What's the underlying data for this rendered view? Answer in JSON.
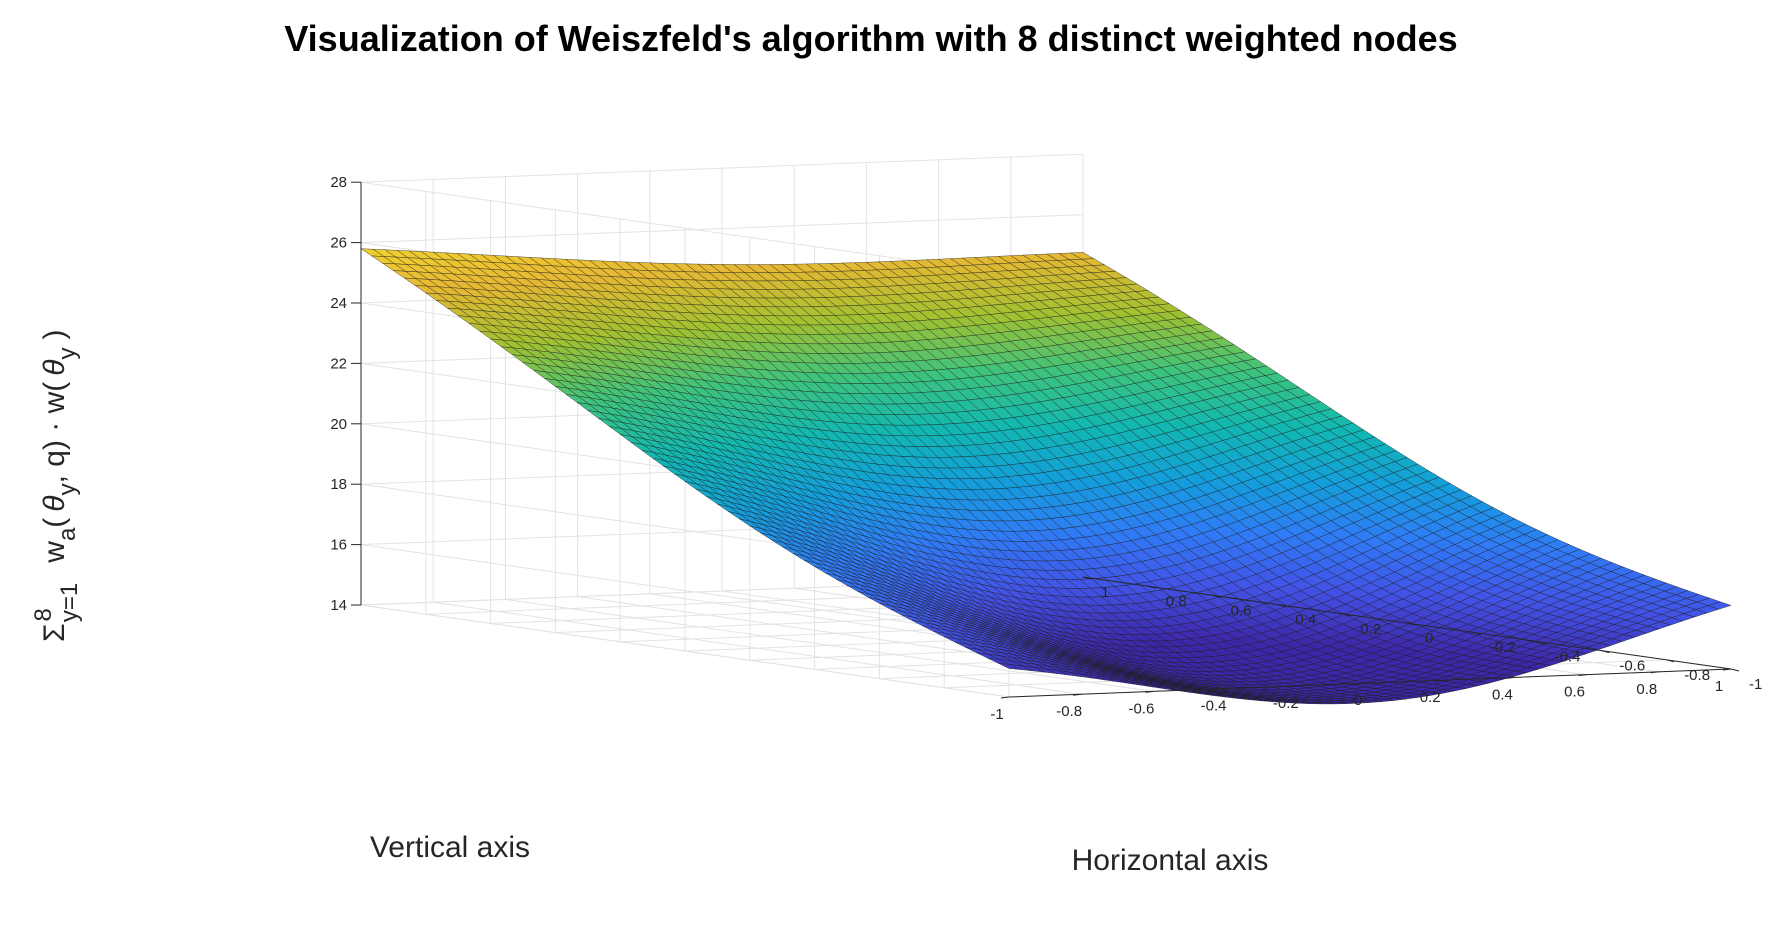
{
  "chart_data": {
    "type": "surface",
    "title": "Visualization of Weiszfeld's algorithm with 8 distinct weighted nodes",
    "xlabel": "Horizontal axis",
    "ylabel": "Vertical axis",
    "zlabel": {
      "sum_symbol": "Σ",
      "sum_lower": "y=1",
      "sum_upper": "8",
      "w_a": "w",
      "w_a_sub": "a",
      "open": "(",
      "theta": "θ",
      "theta_sub": "y",
      "mid": ", q) · w(",
      "close": ")"
    },
    "xlim": [
      -1,
      1
    ],
    "ylim": [
      -1,
      1
    ],
    "zlim": [
      14,
      28
    ],
    "xticks": [
      "-1",
      "-0.8",
      "-0.6",
      "-0.4",
      "-0.2",
      "0",
      "0.2",
      "0.4",
      "0.6",
      "0.8",
      "1"
    ],
    "yticks": [
      "-1",
      "-0.8",
      "-0.6",
      "-0.4",
      "-0.2",
      "0",
      "0.2",
      "0.4",
      "0.6",
      "0.8",
      "1"
    ],
    "zticks": [
      "14",
      "16",
      "18",
      "20",
      "22",
      "24",
      "26",
      "28"
    ],
    "grid": true,
    "colormap": "parula",
    "colormap_stops": [
      "#3e26a8",
      "#4253e6",
      "#2f7cf6",
      "#139fda",
      "#12b8b0",
      "#3ec37c",
      "#a1c130",
      "#e7b833",
      "#f6d92e"
    ],
    "corner_values": [
      {
        "x": -1,
        "y": -1,
        "z": 15.9
      },
      {
        "x": 1,
        "y": -1,
        "z": 17.3
      },
      {
        "x": 1,
        "y": 1,
        "z": 25.0
      },
      {
        "x": -1,
        "y": 1,
        "z": 26.0
      }
    ],
    "minimum": {
      "x": 0.05,
      "y": -0.35,
      "z": 14.3
    },
    "mesh_resolution": 61
  }
}
